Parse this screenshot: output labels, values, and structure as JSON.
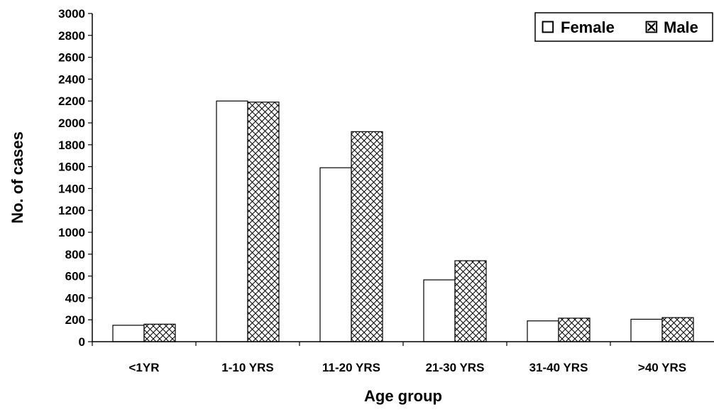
{
  "chart_data": {
    "type": "bar",
    "title": "",
    "xlabel": "Age group",
    "ylabel": "No. of cases",
    "ylim": [
      0,
      3000
    ],
    "ytick_step": 200,
    "categories": [
      "<1YR",
      "1-10 YRS",
      "11-20 YRS",
      "21-30 YRS",
      "31-40 YRS",
      ">40 YRS"
    ],
    "series": [
      {
        "name": "Female",
        "values": [
          150,
          2200,
          1590,
          565,
          190,
          205
        ],
        "pattern": "plain"
      },
      {
        "name": "Male",
        "values": [
          160,
          2190,
          1920,
          740,
          215,
          220
        ],
        "pattern": "crosshatch"
      }
    ],
    "legend": {
      "position": "top-right",
      "female_glyph": "☐",
      "male_glyph": "☒"
    },
    "grid": false,
    "colors": {
      "bar_fill": "#ffffff",
      "stroke": "#000000"
    }
  }
}
